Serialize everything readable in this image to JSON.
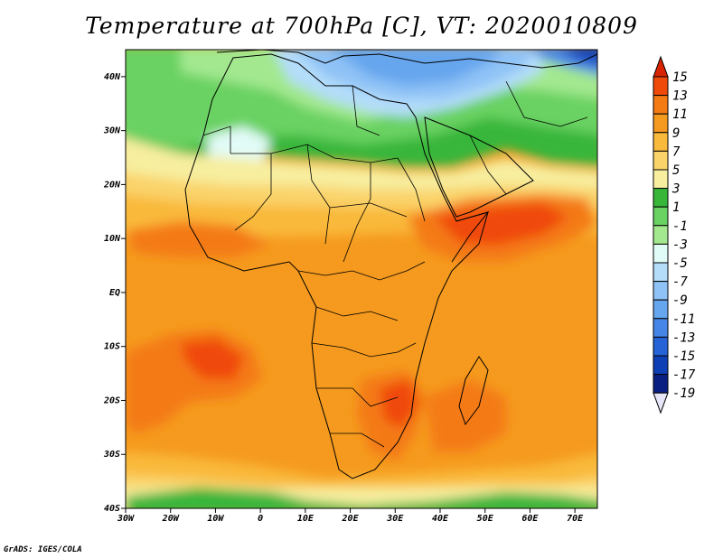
{
  "title": "Temperature at 700hPa [C], VT: 2020010809",
  "credit": "GrADS: IGES/COLA",
  "map": {
    "projection": "latlon",
    "lon_range": [
      -30,
      75
    ],
    "lat_range": [
      -40,
      45
    ],
    "lon_ticks": [
      "30W",
      "20W",
      "10W",
      "0",
      "10E",
      "20E",
      "30E",
      "40E",
      "50E",
      "60E",
      "70E"
    ],
    "lat_ticks": [
      "40N",
      "30N",
      "20N",
      "10N",
      "EQ",
      "10S",
      "20S",
      "30S",
      "40S"
    ],
    "features": [
      "coastlines",
      "country-borders"
    ]
  },
  "colorbar": {
    "labels": [
      "15",
      "13",
      "11",
      "9",
      "7",
      "5",
      "3",
      "1",
      "-1",
      "-3",
      "-5",
      "-7",
      "-9",
      "-11",
      "-13",
      "-15",
      "-17",
      "-19"
    ],
    "colors": [
      "#d72300",
      "#f04a0a",
      "#f47a14",
      "#f59a1e",
      "#f9b93a",
      "#fad36a",
      "#f7ee9f",
      "#37b63a",
      "#69d262",
      "#a3e88f",
      "#e1fbf6",
      "#b4ddfa",
      "#8fc2f6",
      "#66a6ee",
      "#4686e6",
      "#2563d6",
      "#0e3fb5",
      "#0a1f82",
      "#e6e6f8"
    ]
  }
}
